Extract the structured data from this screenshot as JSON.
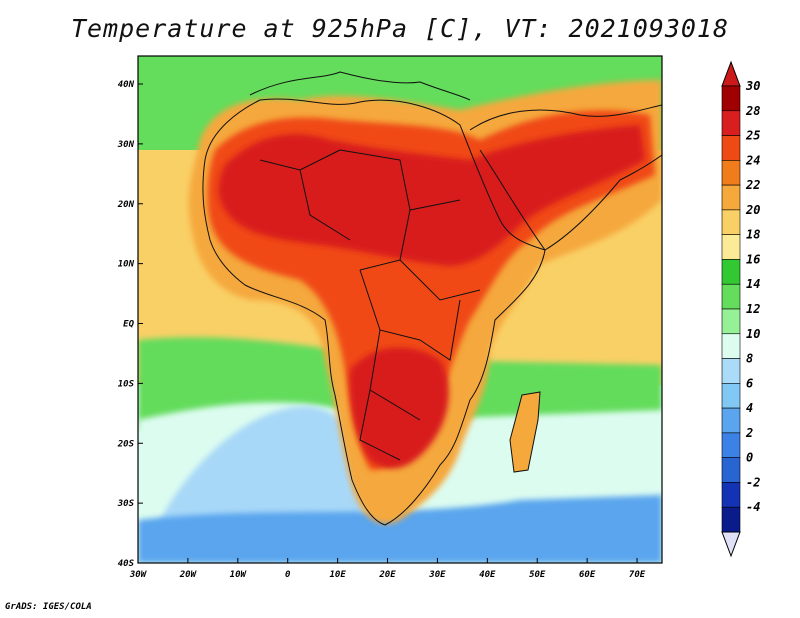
{
  "title": "Temperature at 925hPa [C], VT: 2021093018",
  "credit": "GrADS: IGES/COLA",
  "lon_labels": [
    "30W",
    "20W",
    "10W",
    "0",
    "10E",
    "20E",
    "30E",
    "40E",
    "50E",
    "60E",
    "70E"
  ],
  "lat_labels": [
    "40N",
    "30N",
    "20N",
    "10N",
    "EQ",
    "10S",
    "20S",
    "30S",
    "40S"
  ],
  "legend": {
    "labels": [
      "30",
      "28",
      "25",
      "24",
      "22",
      "20",
      "18",
      "16",
      "14",
      "12",
      "10",
      "8",
      "6",
      "4",
      "2",
      "0",
      "-2",
      "-4"
    ],
    "colors": [
      "#a00000",
      "#d81e1e",
      "#f04a14",
      "#f07c1c",
      "#f5a83c",
      "#f9d066",
      "#fbeb96",
      "#32c832",
      "#64dc5c",
      "#96f096",
      "#dcfcf0",
      "#aadcfa",
      "#82c8f5",
      "#5aa5ee",
      "#3c82e6",
      "#2864d2",
      "#1432b4",
      "#0a1c8c"
    ],
    "top_color": "#cc1a1a",
    "bottom_color": "#e0e0f8"
  },
  "map_colors": {
    "ocean_cool": "#a8d8f8",
    "ocean_cold": "#5aa5ee",
    "ocean_mild": "#dcfcf0",
    "ocean_green": "#64dc5c",
    "ocean_warm": "#f9d066",
    "land_warm": "#f5a83c",
    "land_hot": "#f04a14",
    "land_hottest": "#d81e1e",
    "boundary": "#111111"
  }
}
